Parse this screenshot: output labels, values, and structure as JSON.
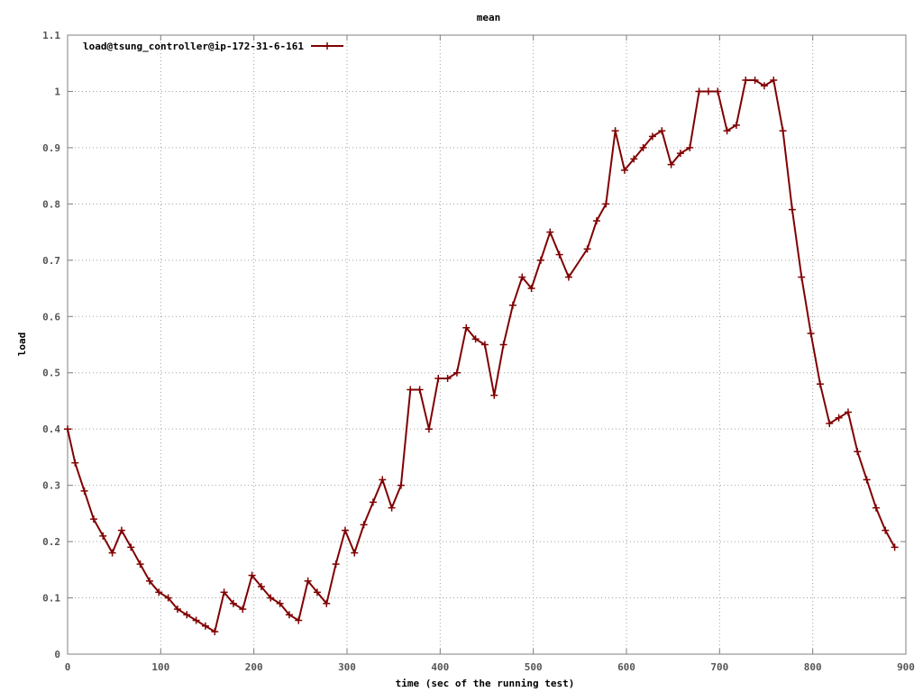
{
  "chart_data": {
    "type": "line",
    "title": "mean",
    "xlabel": "time (sec of the running test)",
    "ylabel": "load",
    "xlim": [
      0,
      900
    ],
    "ylim": [
      0,
      1.1
    ],
    "x_ticks": [
      "0",
      "100",
      "200",
      "300",
      "400",
      "500",
      "600",
      "700",
      "800",
      "900"
    ],
    "y_ticks": [
      "0",
      "0.1",
      "0.2",
      "0.3",
      "0.4",
      "0.5",
      "0.6",
      "0.7",
      "0.8",
      "0.9",
      "1",
      "1.1"
    ],
    "grid": true,
    "legend": "top-left",
    "series": [
      {
        "name": "load@tsung_controller@ip-172-31-6-161",
        "color": "#800000",
        "x": [
          0,
          8,
          18,
          28,
          38,
          48,
          58,
          68,
          78,
          88,
          98,
          108,
          118,
          128,
          138,
          148,
          158,
          168,
          178,
          188,
          198,
          208,
          218,
          228,
          238,
          248,
          258,
          268,
          278,
          288,
          298,
          308,
          318,
          328,
          338,
          348,
          358,
          368,
          378,
          388,
          398,
          408,
          418,
          428,
          438,
          448,
          458,
          468,
          478,
          488,
          498,
          508,
          518,
          528,
          538,
          558,
          568,
          578,
          588,
          598,
          608,
          618,
          628,
          638,
          648,
          658,
          668,
          678,
          688,
          698,
          708,
          718,
          728,
          738,
          748,
          758,
          768,
          778,
          788,
          798,
          808,
          818,
          828,
          838,
          848,
          858,
          868,
          878,
          888
        ],
        "y": [
          0.4,
          0.34,
          0.29,
          0.24,
          0.21,
          0.18,
          0.22,
          0.19,
          0.16,
          0.13,
          0.11,
          0.1,
          0.08,
          0.07,
          0.06,
          0.05,
          0.04,
          0.11,
          0.09,
          0.08,
          0.14,
          0.12,
          0.1,
          0.09,
          0.07,
          0.06,
          0.13,
          0.11,
          0.09,
          0.16,
          0.22,
          0.18,
          0.23,
          0.27,
          0.31,
          0.26,
          0.3,
          0.47,
          0.47,
          0.4,
          0.49,
          0.49,
          0.5,
          0.58,
          0.56,
          0.55,
          0.46,
          0.55,
          0.62,
          0.67,
          0.65,
          0.7,
          0.75,
          0.71,
          0.67,
          0.72,
          0.77,
          0.8,
          0.93,
          0.86,
          0.88,
          0.9,
          0.92,
          0.93,
          0.87,
          0.89,
          0.9,
          1.0,
          1.0,
          1.0,
          0.93,
          0.94,
          1.02,
          1.02,
          1.01,
          1.02,
          0.93,
          0.79,
          0.67,
          0.57,
          0.48,
          0.41,
          0.42,
          0.43,
          0.36,
          0.31,
          0.26,
          0.22,
          0.19
        ]
      }
    ]
  }
}
